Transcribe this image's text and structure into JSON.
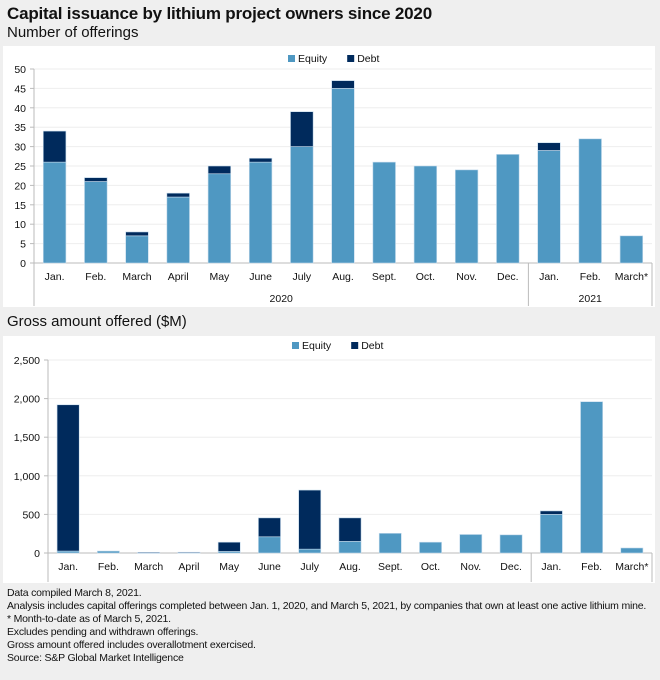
{
  "title": "Capital issuance by lithium project owners since 2020",
  "chart_data": [
    {
      "type": "bar",
      "stacked": true,
      "title": "Number of offerings",
      "categories": [
        "Jan.",
        "Feb.",
        "March",
        "April",
        "May",
        "June",
        "July",
        "Aug.",
        "Sept.",
        "Oct.",
        "Nov.",
        "Dec.",
        "Jan.",
        "Feb.",
        "March*"
      ],
      "groups": [
        {
          "label": "2020",
          "count": 12
        },
        {
          "label": "2021",
          "count": 3
        }
      ],
      "series": [
        {
          "name": "Equity",
          "color": "#4f98c2",
          "values": [
            26,
            21,
            7,
            17,
            23,
            26,
            30,
            45,
            26,
            25,
            24,
            28,
            29,
            32,
            7
          ]
        },
        {
          "name": "Debt",
          "color": "#002a5c",
          "values": [
            8,
            1,
            1,
            1,
            2,
            1,
            9,
            2,
            0,
            0,
            0,
            0,
            2,
            0,
            0
          ]
        }
      ],
      "ylim": [
        0,
        50
      ],
      "yticks": [
        0,
        5,
        10,
        15,
        20,
        25,
        30,
        35,
        40,
        45,
        50
      ],
      "ytick_labels": [
        "0",
        "5",
        "10",
        "15",
        "20",
        "25",
        "30",
        "35",
        "40",
        "45",
        "50"
      ],
      "xlabel": "",
      "ylabel": "",
      "grid": true,
      "legend": "top-center"
    },
    {
      "type": "bar",
      "stacked": true,
      "title": "Gross amount offered ($M)",
      "categories": [
        "Jan.",
        "Feb.",
        "March",
        "April",
        "May",
        "June",
        "July",
        "Aug.",
        "Sept.",
        "Oct.",
        "Nov.",
        "Dec.",
        "Jan.",
        "Feb.",
        "March*"
      ],
      "groups": [
        {
          "label": "2020",
          "count": 12
        },
        {
          "label": "2021",
          "count": 3
        }
      ],
      "series": [
        {
          "name": "Equity",
          "color": "#4f98c2",
          "values": [
            25,
            25,
            5,
            8,
            20,
            210,
            50,
            150,
            255,
            140,
            240,
            235,
            500,
            1960,
            65
          ]
        },
        {
          "name": "Debt",
          "color": "#002a5c",
          "values": [
            1895,
            0,
            3,
            2,
            120,
            245,
            765,
            305,
            0,
            0,
            0,
            0,
            45,
            0,
            0
          ]
        }
      ],
      "ylim": [
        0,
        2500
      ],
      "yticks": [
        0,
        500,
        1000,
        1500,
        2000,
        2500
      ],
      "ytick_labels": [
        "0",
        "500",
        "1,000",
        "1,500",
        "2,000",
        "2,500"
      ],
      "xlabel": "",
      "ylabel": "",
      "grid": true,
      "legend": "top-center"
    }
  ],
  "notes": [
    "Data compiled March 8, 2021.",
    "Analysis includes capital offerings completed between Jan. 1, 2020, and March 5, 2021, by companies that own at least one active lithium mine.",
    "* Month-to-date as of March 5, 2021.",
    "Excludes pending and withdrawn offerings.",
    "Gross amount offered includes overallotment exercised.",
    "Source: S&P Global Market Intelligence"
  ]
}
